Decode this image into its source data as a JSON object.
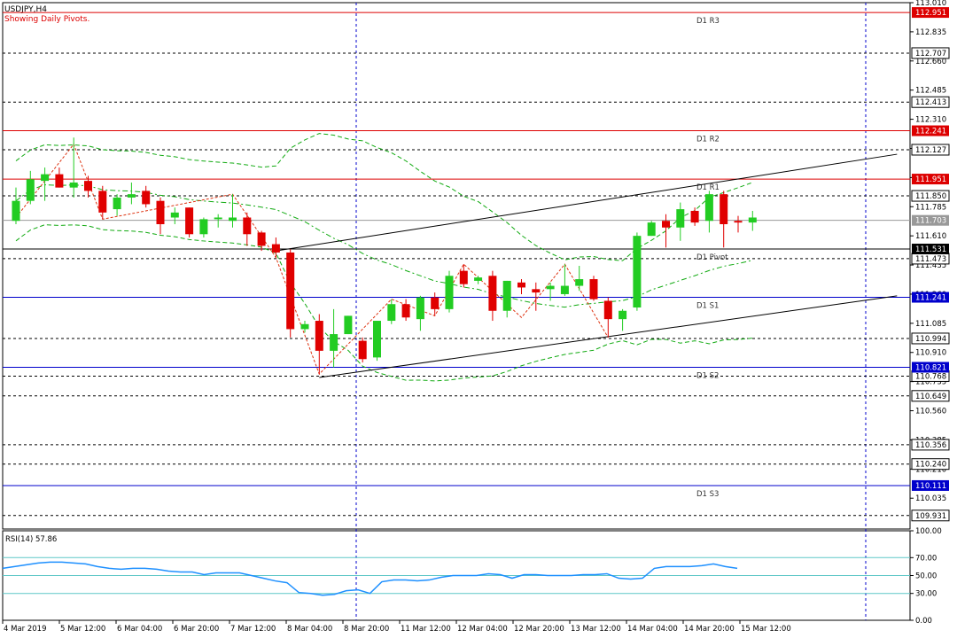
{
  "header": {
    "symbol": "USDJPY,H4",
    "subtitle": "Showing Daily Pivots."
  },
  "rsi_label": "RSI(14) 57.86",
  "chart_data": {
    "type": "candlestick",
    "symbol": "USDJPY",
    "timeframe": "H4",
    "price_axis": {
      "min": 109.85,
      "max": 113.01,
      "ticks": [
        "113.010",
        "112.835",
        "112.660",
        "112.485",
        "112.310",
        "112.135",
        "111.960",
        "111.785",
        "111.610",
        "111.435",
        "111.260",
        "111.085",
        "110.910",
        "110.735",
        "110.560",
        "110.385",
        "110.210",
        "110.035"
      ]
    },
    "time_labels": [
      "4 Mar 2019",
      "5 Mar 12:00",
      "6 Mar 04:00",
      "6 Mar 20:00",
      "7 Mar 12:00",
      "8 Mar 04:00",
      "8 Mar 20:00",
      "11 Mar 12:00",
      "12 Mar 04:00",
      "12 Mar 20:00",
      "13 Mar 12:00",
      "14 Mar 04:00",
      "14 Mar 20:00",
      "15 Mar 12:00"
    ],
    "candles": [
      {
        "o": 111.7,
        "h": 111.9,
        "l": 111.68,
        "c": 111.82
      },
      {
        "o": 111.82,
        "h": 112.0,
        "l": 111.8,
        "c": 111.95
      },
      {
        "o": 111.94,
        "h": 112.02,
        "l": 111.82,
        "c": 111.98
      },
      {
        "o": 111.98,
        "h": 112.02,
        "l": 111.9,
        "c": 111.9
      },
      {
        "o": 111.9,
        "h": 112.2,
        "l": 111.84,
        "c": 111.93
      },
      {
        "o": 111.94,
        "h": 111.97,
        "l": 111.84,
        "c": 111.88
      },
      {
        "o": 111.88,
        "h": 111.91,
        "l": 111.71,
        "c": 111.75
      },
      {
        "o": 111.77,
        "h": 111.86,
        "l": 111.73,
        "c": 111.84
      },
      {
        "o": 111.84,
        "h": 111.93,
        "l": 111.8,
        "c": 111.86
      },
      {
        "o": 111.88,
        "h": 111.91,
        "l": 111.78,
        "c": 111.8
      },
      {
        "o": 111.82,
        "h": 111.84,
        "l": 111.62,
        "c": 111.68
      },
      {
        "o": 111.72,
        "h": 111.78,
        "l": 111.68,
        "c": 111.75
      },
      {
        "o": 111.78,
        "h": 111.78,
        "l": 111.6,
        "c": 111.62
      },
      {
        "o": 111.62,
        "h": 111.72,
        "l": 111.6,
        "c": 111.71
      },
      {
        "o": 111.71,
        "h": 111.74,
        "l": 111.66,
        "c": 111.72
      },
      {
        "o": 111.7,
        "h": 111.86,
        "l": 111.66,
        "c": 111.72
      },
      {
        "o": 111.72,
        "h": 111.75,
        "l": 111.55,
        "c": 111.62
      },
      {
        "o": 111.63,
        "h": 111.64,
        "l": 111.52,
        "c": 111.55
      },
      {
        "o": 111.56,
        "h": 111.6,
        "l": 111.48,
        "c": 111.51
      },
      {
        "o": 111.51,
        "h": 111.53,
        "l": 111.0,
        "c": 111.05
      },
      {
        "o": 111.05,
        "h": 111.1,
        "l": 111.03,
        "c": 111.08
      },
      {
        "o": 111.1,
        "h": 111.14,
        "l": 110.78,
        "c": 110.92
      },
      {
        "o": 110.92,
        "h": 111.17,
        "l": 110.82,
        "c": 111.02
      },
      {
        "o": 111.02,
        "h": 111.13,
        "l": 111.02,
        "c": 111.13
      },
      {
        "o": 110.98,
        "h": 111.0,
        "l": 110.85,
        "c": 110.87
      },
      {
        "o": 110.88,
        "h": 111.1,
        "l": 110.86,
        "c": 111.1
      },
      {
        "o": 111.1,
        "h": 111.23,
        "l": 111.08,
        "c": 111.2
      },
      {
        "o": 111.2,
        "h": 111.23,
        "l": 111.1,
        "c": 111.12
      },
      {
        "o": 111.11,
        "h": 111.25,
        "l": 111.04,
        "c": 111.24
      },
      {
        "o": 111.24,
        "h": 111.27,
        "l": 111.13,
        "c": 111.17
      },
      {
        "o": 111.17,
        "h": 111.4,
        "l": 111.15,
        "c": 111.37
      },
      {
        "o": 111.4,
        "h": 111.44,
        "l": 111.3,
        "c": 111.32
      },
      {
        "o": 111.34,
        "h": 111.37,
        "l": 111.32,
        "c": 111.36
      },
      {
        "o": 111.37,
        "h": 111.4,
        "l": 111.1,
        "c": 111.16
      },
      {
        "o": 111.16,
        "h": 111.34,
        "l": 111.12,
        "c": 111.34
      },
      {
        "o": 111.33,
        "h": 111.35,
        "l": 111.26,
        "c": 111.3
      },
      {
        "o": 111.29,
        "h": 111.33,
        "l": 111.16,
        "c": 111.27
      },
      {
        "o": 111.29,
        "h": 111.33,
        "l": 111.22,
        "c": 111.31
      },
      {
        "o": 111.26,
        "h": 111.44,
        "l": 111.25,
        "c": 111.31
      },
      {
        "o": 111.31,
        "h": 111.43,
        "l": 111.28,
        "c": 111.35
      },
      {
        "o": 111.35,
        "h": 111.37,
        "l": 111.22,
        "c": 111.23
      },
      {
        "o": 111.22,
        "h": 111.24,
        "l": 111.0,
        "c": 111.11
      },
      {
        "o": 111.11,
        "h": 111.17,
        "l": 111.04,
        "c": 111.16
      },
      {
        "o": 111.18,
        "h": 111.63,
        "l": 111.16,
        "c": 111.61
      },
      {
        "o": 111.61,
        "h": 111.7,
        "l": 111.61,
        "c": 111.69
      },
      {
        "o": 111.7,
        "h": 111.74,
        "l": 111.54,
        "c": 111.66
      },
      {
        "o": 111.66,
        "h": 111.81,
        "l": 111.58,
        "c": 111.77
      },
      {
        "o": 111.76,
        "h": 111.78,
        "l": 111.67,
        "c": 111.69
      },
      {
        "o": 111.7,
        "h": 111.88,
        "l": 111.63,
        "c": 111.86
      },
      {
        "o": 111.86,
        "h": 111.88,
        "l": 111.54,
        "c": 111.68
      },
      {
        "o": 111.7,
        "h": 111.73,
        "l": 111.63,
        "c": 111.69
      },
      {
        "o": 111.69,
        "h": 111.76,
        "l": 111.64,
        "c": 111.72
      }
    ],
    "pivot_lines": [
      {
        "label": "D1 R3",
        "price": "112.951",
        "color": "#dd0000"
      },
      {
        "label": "D1 R2",
        "price": "112.241",
        "color": "#dd0000"
      },
      {
        "label": "D1 R1",
        "price": "111.951",
        "color": "#dd0000"
      },
      {
        "label": "D1 Pivot",
        "price": "111.531",
        "color": "#000000"
      },
      {
        "label": "D1 S1",
        "price": "111.241",
        "color": "#0000cc"
      },
      {
        "label": "D1 S2",
        "price": "110.821",
        "color": "#0000cc"
      },
      {
        "label": "D1 S3",
        "price": "110.111",
        "color": "#0000cc"
      }
    ],
    "dashed_levels": [
      "112.707",
      "112.413",
      "112.127",
      "111.850",
      "111.473",
      "110.994",
      "110.768",
      "110.649",
      "110.356",
      "110.240",
      "109.931"
    ],
    "current_price": "111.703",
    "trend_lines": [
      {
        "from": {
          "bar": 18,
          "price": 111.52
        },
        "to": {
          "bar": 61,
          "price": 112.1
        }
      },
      {
        "from": {
          "bar": 21,
          "price": 110.76
        },
        "to": {
          "bar": 61,
          "price": 111.25
        }
      }
    ],
    "rsi": {
      "period": 14,
      "value": 57.86,
      "levels": [
        70,
        50,
        30
      ],
      "axis_ticks": [
        "100.00",
        "70.00",
        "50.00",
        "30.00",
        "0.00"
      ],
      "values": [
        58,
        60,
        62,
        64,
        65,
        65,
        64,
        63,
        60,
        58,
        57,
        58,
        58,
        57,
        55,
        54,
        54,
        51,
        53,
        53,
        53,
        50,
        47,
        44,
        42,
        31,
        30,
        28,
        29,
        33,
        34,
        30,
        43,
        45,
        45,
        44,
        45,
        48,
        50,
        50,
        50,
        52,
        51,
        47,
        51,
        51,
        50,
        50,
        50,
        51,
        51,
        52,
        47,
        46,
        47,
        58,
        60,
        60,
        60,
        61,
        63,
        60,
        58
      ]
    },
    "colors": {
      "bull": "#22cc22",
      "bear": "#e00000",
      "ma": "#11aa11",
      "rsi": "#1e90ff"
    }
  }
}
